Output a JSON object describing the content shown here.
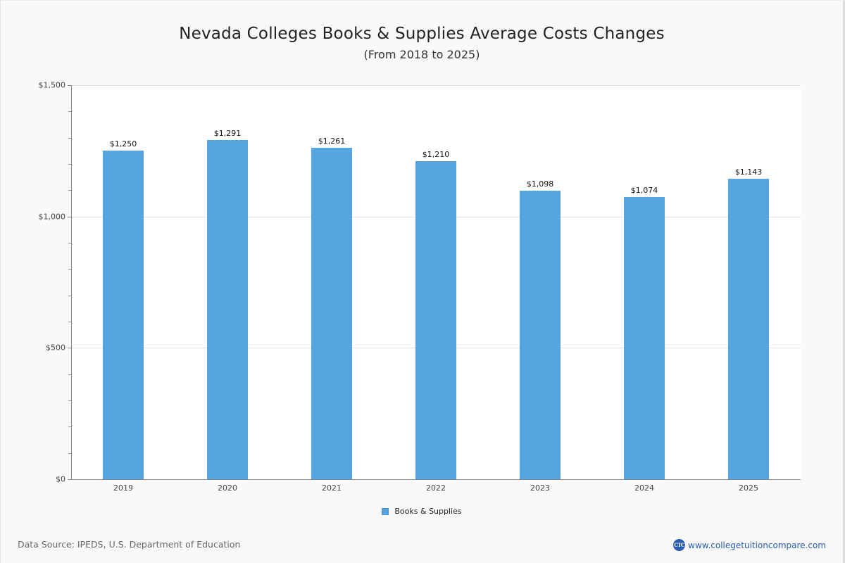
{
  "title": "Nevada Colleges  Books & Supplies Average Costs Changes",
  "subtitle": "(From 2018 to 2025)",
  "footer": {
    "source": "Data Source: IPEDS, U.S. Department of Education",
    "brand_logo_text": "CTC",
    "brand_url": "www.collegetuitioncompare.com"
  },
  "legend": {
    "items": [
      {
        "label": "Books & Supplies",
        "color": "#56a5e1"
      }
    ]
  },
  "colors": {
    "bar": "#56a5e1",
    "background": "#f9f9f9",
    "plot_background": "#ffffff",
    "brand": "#2a5cad"
  },
  "y_axis": {
    "ticks": [
      {
        "value": 0,
        "label": "$0"
      },
      {
        "value": 500,
        "label": "$500"
      },
      {
        "value": 1000,
        "label": "$1,000"
      },
      {
        "value": 1500,
        "label": "$1,500"
      }
    ]
  },
  "bars": [
    {
      "year": "2019",
      "value": 1250,
      "label": "$1,250"
    },
    {
      "year": "2020",
      "value": 1291,
      "label": "$1,291"
    },
    {
      "year": "2021",
      "value": 1261,
      "label": "$1,261"
    },
    {
      "year": "2022",
      "value": 1210,
      "label": "$1,210"
    },
    {
      "year": "2023",
      "value": 1098,
      "label": "$1,098"
    },
    {
      "year": "2024",
      "value": 1074,
      "label": "$1,074"
    },
    {
      "year": "2025",
      "value": 1143,
      "label": "$1,143"
    }
  ],
  "chart_data": {
    "type": "bar",
    "title": "Nevada Colleges  Books & Supplies Average Costs Changes",
    "subtitle": "(From 2018 to 2025)",
    "categories": [
      "2019",
      "2020",
      "2021",
      "2022",
      "2023",
      "2024",
      "2025"
    ],
    "series": [
      {
        "name": "Books & Supplies",
        "values": [
          1250,
          1291,
          1261,
          1210,
          1098,
          1074,
          1143
        ],
        "color": "#56a5e1"
      }
    ],
    "data_labels": [
      "$1,250",
      "$1,291",
      "$1,261",
      "$1,210",
      "$1,098",
      "$1,074",
      "$1,143"
    ],
    "xlabel": "",
    "ylabel": "",
    "ylim": [
      0,
      1500
    ],
    "yticks": [
      "$0",
      "$500",
      "$1,000",
      "$1,500"
    ],
    "grid": "horizontal major gridlines",
    "legend_position": "bottom-center"
  }
}
